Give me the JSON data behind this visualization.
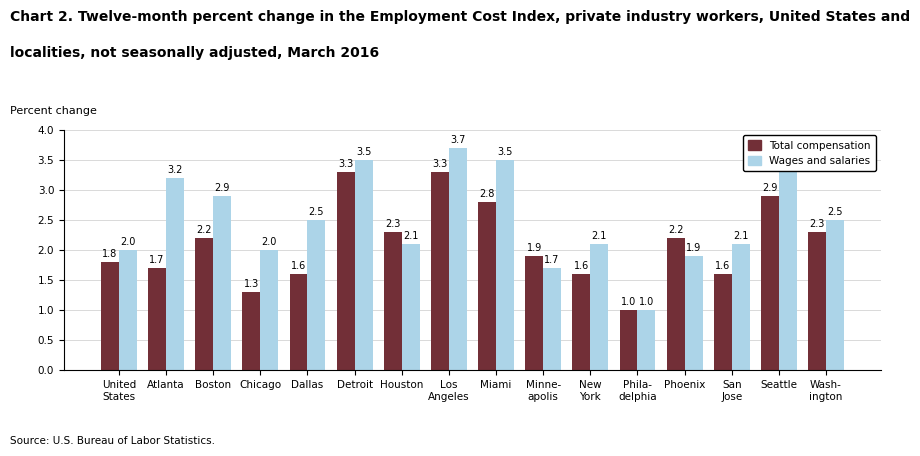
{
  "title_line1": "Chart 2. Twelve-month percent change in the Employment Cost Index, private industry workers, United States and",
  "title_line2": "localities, not seasonally adjusted, March 2016",
  "ylabel": "Percent change",
  "source": "Source: U.S. Bureau of Labor Statistics.",
  "categories": [
    "United\nStates",
    "Atlanta",
    "Boston",
    "Chicago",
    "Dallas",
    "Detroit",
    "Houston",
    "Los\nAngeles",
    "Miami",
    "Minne-\napolis",
    "New\nYork",
    "Phila-\ndelphia",
    "Phoenix",
    "San\nJose",
    "Seattle",
    "Wash-\nington"
  ],
  "total_compensation": [
    1.8,
    1.7,
    2.2,
    1.3,
    1.6,
    3.3,
    2.3,
    3.3,
    2.8,
    1.9,
    1.6,
    1.0,
    2.2,
    1.6,
    2.9,
    2.3
  ],
  "wages_and_salaries": [
    2.0,
    3.2,
    2.9,
    2.0,
    2.5,
    3.5,
    2.1,
    3.7,
    3.5,
    1.7,
    2.1,
    1.0,
    1.9,
    2.1,
    3.5,
    2.5
  ],
  "color_total": "#722f37",
  "color_wages": "#acd4e8",
  "ylim": [
    0,
    4.0
  ],
  "yticks": [
    0.0,
    0.5,
    1.0,
    1.5,
    2.0,
    2.5,
    3.0,
    3.5,
    4.0
  ],
  "legend_labels": [
    "Total compensation",
    "Wages and salaries"
  ],
  "bar_width": 0.38,
  "value_fontsize": 7.0,
  "label_fontsize": 7.5,
  "title_fontsize": 10.0,
  "ylabel_fontsize": 8.0,
  "source_fontsize": 7.5
}
